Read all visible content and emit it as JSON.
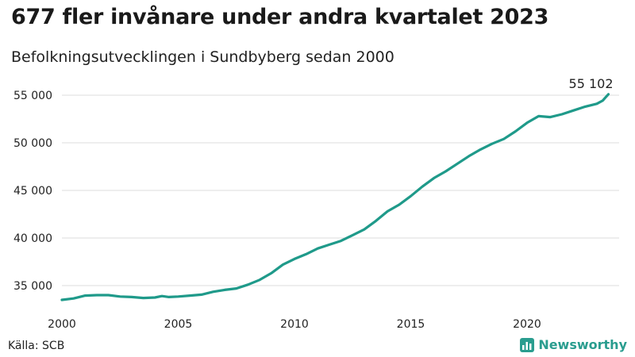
{
  "header": {
    "title": "677 fler invånare under andra kvartalet 2023",
    "subtitle": "Befolkningsutvecklingen i Sundbyberg sedan 2000"
  },
  "footer": {
    "source": "Källa: SCB",
    "brand": "Newsworthy"
  },
  "colors": {
    "line": "#1f9a8a",
    "grid": "#dddddd",
    "brand": "#2a9d8f"
  },
  "chart_data": {
    "type": "line",
    "title": "677 fler invånare under andra kvartalet 2023",
    "subtitle": "Befolkningsutvecklingen i Sundbyberg sedan 2000",
    "xlabel": "",
    "ylabel": "",
    "xlim": [
      2000,
      2024
    ],
    "ylim": [
      33000,
      56000
    ],
    "x_ticks": [
      2000,
      2005,
      2010,
      2015,
      2020
    ],
    "x_tick_labels": [
      "2000",
      "2005",
      "2010",
      "2015",
      "2020"
    ],
    "y_ticks": [
      35000,
      40000,
      45000,
      50000,
      55000
    ],
    "y_tick_labels": [
      "35 000",
      "40 000",
      "45 000",
      "50 000",
      "55 000"
    ],
    "grid": "horizontal",
    "end_label": "55 102",
    "series": [
      {
        "values": [
          [
            2000.0,
            33500
          ],
          [
            2000.5,
            33650
          ],
          [
            2001.0,
            33950
          ],
          [
            2001.5,
            34000
          ],
          [
            2002.0,
            34000
          ],
          [
            2002.5,
            33850
          ],
          [
            2003.0,
            33800
          ],
          [
            2003.5,
            33700
          ],
          [
            2004.0,
            33750
          ],
          [
            2004.3,
            33900
          ],
          [
            2004.6,
            33800
          ],
          [
            2005.0,
            33850
          ],
          [
            2005.5,
            33950
          ],
          [
            2006.0,
            34050
          ],
          [
            2006.5,
            34350
          ],
          [
            2007.0,
            34550
          ],
          [
            2007.5,
            34700
          ],
          [
            2008.0,
            35100
          ],
          [
            2008.5,
            35600
          ],
          [
            2009.0,
            36300
          ],
          [
            2009.5,
            37200
          ],
          [
            2010.0,
            37800
          ],
          [
            2010.5,
            38300
          ],
          [
            2011.0,
            38900
          ],
          [
            2011.5,
            39300
          ],
          [
            2012.0,
            39700
          ],
          [
            2012.5,
            40300
          ],
          [
            2013.0,
            40900
          ],
          [
            2013.5,
            41800
          ],
          [
            2014.0,
            42800
          ],
          [
            2014.5,
            43500
          ],
          [
            2015.0,
            44400
          ],
          [
            2015.5,
            45400
          ],
          [
            2016.0,
            46300
          ],
          [
            2016.5,
            47000
          ],
          [
            2017.0,
            47800
          ],
          [
            2017.5,
            48600
          ],
          [
            2018.0,
            49300
          ],
          [
            2018.5,
            49900
          ],
          [
            2019.0,
            50400
          ],
          [
            2019.5,
            51200
          ],
          [
            2020.0,
            52100
          ],
          [
            2020.5,
            52800
          ],
          [
            2021.0,
            52700
          ],
          [
            2021.5,
            53000
          ],
          [
            2022.0,
            53400
          ],
          [
            2022.5,
            53800
          ],
          [
            2023.0,
            54100
          ],
          [
            2023.25,
            54425
          ],
          [
            2023.5,
            55102
          ]
        ]
      }
    ]
  }
}
